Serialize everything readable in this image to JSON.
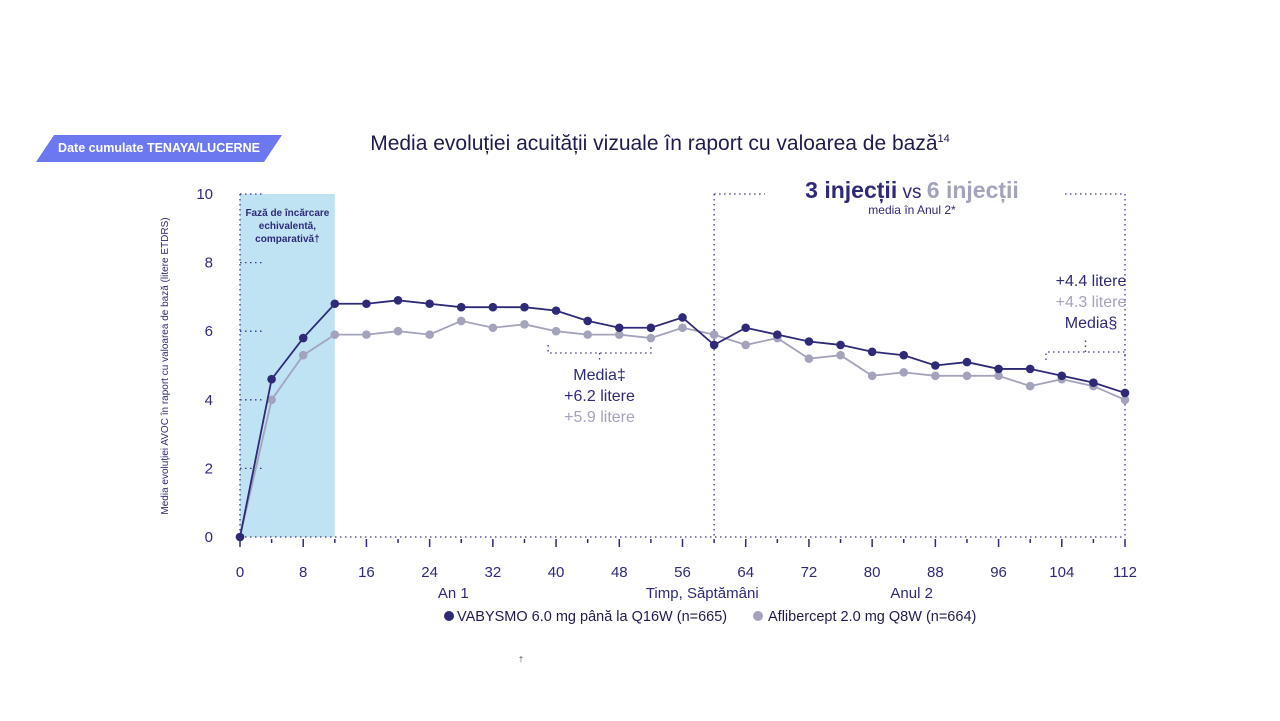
{
  "badge": {
    "label": "Date cumulate TENAYA/LUCERNE"
  },
  "header": {
    "title": "Media evoluției acuității vizuale în raport cu valoarea de bază",
    "title_sup": "14"
  },
  "colors": {
    "purple": "#2e2a78",
    "grey": "#a4a3bc",
    "loading_bg": "#bfe3f3",
    "badge": "#6b78f0"
  },
  "loading_phase": {
    "lines": [
      "Fază de încărcare",
      "echivalentă,",
      "comparativă†"
    ],
    "x_range": [
      0,
      12
    ]
  },
  "annotations": {
    "injections_a": "3 injecții",
    "injections_vs": "vs",
    "injections_b": "6 injecții",
    "injections_sub": "media în Anul 2*",
    "year2_plus1": "+4.4 litere",
    "year2_plus2": "+4.3 litere",
    "year2_media": "Media§",
    "year1_media": "Media‡",
    "year1_plus1": "+6.2 litere",
    "year1_plus2": "+5.9 litere"
  },
  "footnote": "†",
  "chart_data": {
    "type": "line",
    "title": "Media evoluției acuității vizuale în raport cu valoarea de bază",
    "xlabel": "Timp, Săptămâni",
    "ylabel": "Media evoluției AVOC în raport cu valoarea de bază (litere ETDRS)",
    "xlim": [
      0,
      112
    ],
    "ylim": [
      0,
      10
    ],
    "x_ticks": [
      0,
      8,
      16,
      24,
      32,
      40,
      48,
      56,
      64,
      72,
      80,
      88,
      96,
      104,
      112
    ],
    "y_ticks": [
      0,
      2,
      4,
      6,
      8,
      10
    ],
    "x_groups": [
      "An 1",
      "Anul 2"
    ],
    "x": [
      0,
      4,
      8,
      12,
      16,
      20,
      24,
      28,
      32,
      36,
      40,
      44,
      48,
      52,
      56,
      60,
      64,
      68,
      72,
      76,
      80,
      84,
      88,
      92,
      96,
      100,
      104,
      108,
      112
    ],
    "series": [
      {
        "name": "VABYSMO 6.0 mg până la Q16W (n=665)",
        "color": "#2e2a78",
        "values": [
          0,
          4.6,
          5.8,
          6.8,
          6.8,
          6.9,
          6.8,
          6.7,
          6.7,
          6.7,
          6.6,
          6.3,
          6.1,
          6.1,
          6.4,
          5.6,
          6.1,
          5.9,
          5.7,
          5.6,
          5.4,
          5.3,
          5.0,
          5.1,
          4.9,
          4.9,
          4.7,
          4.5,
          4.2
        ]
      },
      {
        "name": "Aflibercept 2.0 mg Q8W (n=664)",
        "color": "#a4a3bc",
        "values": [
          0,
          4.0,
          5.3,
          5.9,
          5.9,
          6.0,
          5.9,
          6.3,
          6.1,
          6.2,
          6.0,
          5.9,
          5.9,
          5.8,
          6.1,
          5.9,
          5.6,
          5.8,
          5.2,
          5.3,
          4.7,
          4.8,
          4.7,
          4.7,
          4.7,
          4.4,
          4.6,
          4.4,
          4.0
        ]
      }
    ],
    "legend_position": "bottom"
  }
}
